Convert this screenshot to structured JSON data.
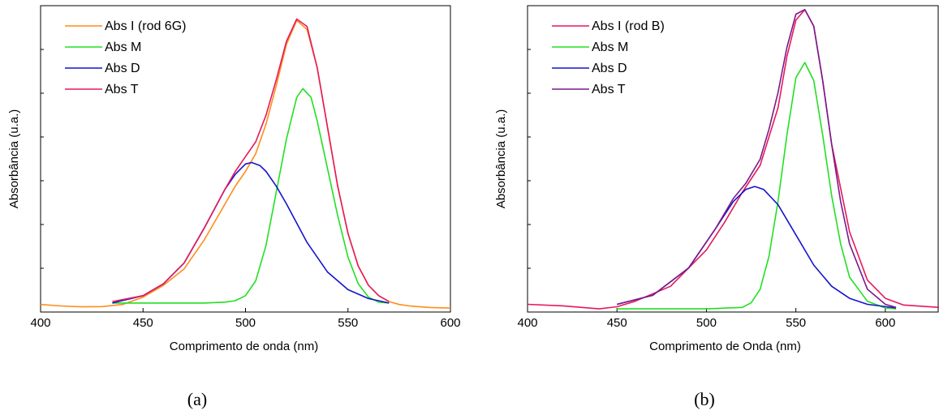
{
  "chart_data": [
    {
      "type": "line",
      "xlabel": "Comprimento de onda (nm)",
      "ylabel": "Absorbância (u.a.)",
      "caption": "(a)",
      "xlim": [
        400,
        600
      ],
      "ylim": [
        0,
        1.0
      ],
      "xticks": [
        400,
        450,
        500,
        550,
        600
      ],
      "legend_position": "top-left",
      "series": [
        {
          "name": "Abs I (rod 6G)",
          "color": "#ff8c1a",
          "x": [
            400,
            410,
            420,
            430,
            440,
            450,
            460,
            470,
            480,
            490,
            495,
            500,
            505,
            510,
            515,
            520,
            525,
            530,
            535,
            540,
            545,
            550,
            555,
            560,
            565,
            570,
            575,
            580,
            590,
            600
          ],
          "y": [
            0.02,
            0.015,
            0.012,
            0.013,
            0.02,
            0.045,
            0.085,
            0.14,
            0.24,
            0.36,
            0.42,
            0.47,
            0.53,
            0.63,
            0.76,
            0.9,
            0.98,
            0.95,
            0.82,
            0.62,
            0.42,
            0.26,
            0.15,
            0.085,
            0.05,
            0.03,
            0.02,
            0.015,
            0.01,
            0.008
          ]
        },
        {
          "name": "Abs M",
          "color": "#22e022",
          "x": [
            435,
            460,
            480,
            490,
            495,
            500,
            505,
            510,
            515,
            520,
            525,
            528,
            532,
            535,
            540,
            545,
            550,
            555,
            560,
            565,
            570
          ],
          "y": [
            0.025,
            0.025,
            0.025,
            0.028,
            0.033,
            0.05,
            0.1,
            0.22,
            0.4,
            0.58,
            0.72,
            0.75,
            0.72,
            0.64,
            0.48,
            0.32,
            0.18,
            0.09,
            0.045,
            0.028,
            0.025
          ]
        },
        {
          "name": "Abs D",
          "color": "#1414cc",
          "x": [
            435,
            450,
            460,
            470,
            480,
            490,
            495,
            500,
            503,
            507,
            510,
            515,
            520,
            530,
            540,
            550,
            560,
            570
          ],
          "y": [
            0.025,
            0.05,
            0.09,
            0.16,
            0.28,
            0.41,
            0.46,
            0.495,
            0.5,
            0.49,
            0.47,
            0.42,
            0.36,
            0.23,
            0.13,
            0.07,
            0.04,
            0.025
          ]
        },
        {
          "name": "Abs T",
          "color": "#e6195a",
          "x": [
            435,
            450,
            460,
            470,
            480,
            490,
            495,
            500,
            505,
            510,
            515,
            520,
            525,
            530,
            535,
            540,
            545,
            550,
            555,
            560,
            565,
            570
          ],
          "y": [
            0.03,
            0.05,
            0.09,
            0.16,
            0.28,
            0.41,
            0.47,
            0.52,
            0.57,
            0.66,
            0.78,
            0.91,
            0.985,
            0.96,
            0.82,
            0.62,
            0.42,
            0.26,
            0.15,
            0.085,
            0.05,
            0.03
          ]
        }
      ]
    },
    {
      "type": "line",
      "xlabel": "Comprimento de Onda (nm)",
      "ylabel": "Absorbância (u.a.)",
      "caption": "(b)",
      "xlim": [
        400,
        630
      ],
      "ylim": [
        0,
        1.0
      ],
      "xticks": [
        400,
        450,
        500,
        550,
        600
      ],
      "legend_position": "top-left",
      "series": [
        {
          "name": "Abs I (rod B)",
          "color": "#e6195a",
          "x": [
            400,
            420,
            440,
            450,
            460,
            480,
            500,
            510,
            520,
            530,
            540,
            545,
            550,
            555,
            560,
            565,
            570,
            580,
            590,
            600,
            610,
            630
          ],
          "y": [
            0.02,
            0.015,
            0.005,
            0.012,
            0.03,
            0.08,
            0.2,
            0.29,
            0.39,
            0.48,
            0.67,
            0.84,
            0.96,
            0.995,
            0.94,
            0.76,
            0.55,
            0.26,
            0.1,
            0.04,
            0.018,
            0.01
          ]
        },
        {
          "name": "Abs M",
          "color": "#22e022",
          "x": [
            450,
            500,
            520,
            525,
            530,
            535,
            540,
            545,
            550,
            555,
            560,
            565,
            570,
            575,
            580,
            590,
            600,
            606
          ],
          "y": [
            0.005,
            0.005,
            0.01,
            0.025,
            0.07,
            0.18,
            0.36,
            0.58,
            0.77,
            0.82,
            0.76,
            0.58,
            0.38,
            0.22,
            0.11,
            0.03,
            0.008,
            0.005
          ]
        },
        {
          "name": "Abs D",
          "color": "#1414cc",
          "x": [
            450,
            470,
            490,
            505,
            515,
            522,
            527,
            532,
            540,
            550,
            560,
            570,
            580,
            590,
            606
          ],
          "y": [
            0.02,
            0.05,
            0.14,
            0.27,
            0.36,
            0.4,
            0.41,
            0.4,
            0.35,
            0.25,
            0.15,
            0.08,
            0.04,
            0.02,
            0.008
          ]
        },
        {
          "name": "Abs T",
          "color": "#7a1a8c",
          "x": [
            450,
            470,
            490,
            505,
            515,
            522,
            530,
            535,
            540,
            545,
            550,
            555,
            560,
            565,
            570,
            575,
            580,
            590,
            600,
            606
          ],
          "y": [
            0.02,
            0.05,
            0.14,
            0.27,
            0.37,
            0.42,
            0.5,
            0.6,
            0.72,
            0.87,
            0.98,
            0.995,
            0.94,
            0.76,
            0.55,
            0.36,
            0.22,
            0.07,
            0.02,
            0.01
          ]
        }
      ]
    }
  ]
}
